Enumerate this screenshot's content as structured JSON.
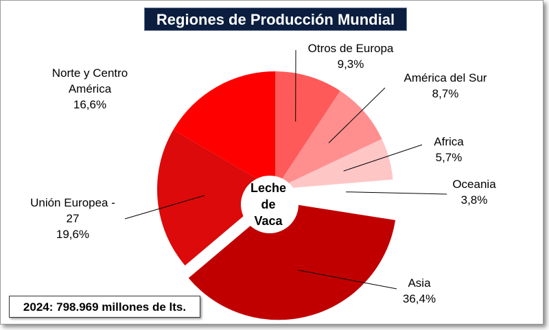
{
  "chart_data": {
    "type": "pie",
    "title": "Regiones de Producción Mundial",
    "center_label": [
      "Leche",
      "de",
      "Vaca"
    ],
    "slices": [
      {
        "name": [
          "Otros de Europa"
        ],
        "value": 9.3,
        "label": "9,3%",
        "color": "#ff5a5a"
      },
      {
        "name": [
          "América del Sur"
        ],
        "value": 8.7,
        "label": "8,7%",
        "color": "#ff8f8f"
      },
      {
        "name": [
          "Africa"
        ],
        "value": 5.7,
        "label": "5,7%",
        "color": "#ffc6c6"
      },
      {
        "name": [
          "Oceania"
        ],
        "value": 3.8,
        "label": "3,8%",
        "color": "#ffffff"
      },
      {
        "name": [
          "Asia"
        ],
        "value": 36.4,
        "label": "36,4%",
        "color": "#c00000"
      },
      {
        "name": [
          "Unión Europea -",
          "27"
        ],
        "value": 19.6,
        "label": "19,6%",
        "color": "#dc0a0a"
      },
      {
        "name": [
          "Norte y Centro",
          "América"
        ],
        "value": 16.6,
        "label": "16,6%",
        "color": "#ff0000"
      }
    ],
    "footnote": "2024: 798.969 millones de lts."
  }
}
